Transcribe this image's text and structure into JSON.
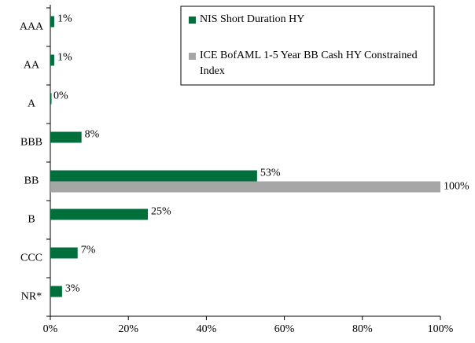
{
  "chart_data": {
    "type": "bar",
    "orientation": "horizontal",
    "categories": [
      "AAA",
      "AA",
      "A",
      "BBB",
      "BB",
      "B",
      "CCC",
      "NR*"
    ],
    "series": [
      {
        "name": "NIS Short Duration HY",
        "color": "#006f3c",
        "values": [
          1,
          1,
          0,
          8,
          53,
          25,
          7,
          3
        ],
        "value_labels": [
          "1%",
          "1%",
          "0%",
          "8%",
          "53%",
          "25%",
          "7%",
          "3%"
        ]
      },
      {
        "name": "ICE BofAML 1-5 Year BB Cash HY Constrained Index",
        "color": "#a6a6a6",
        "values": [
          null,
          null,
          null,
          null,
          100,
          null,
          null,
          null
        ],
        "value_labels": [
          null,
          null,
          null,
          null,
          "100%",
          null,
          null,
          null
        ]
      }
    ],
    "xlim": [
      0,
      100
    ],
    "xticks": [
      {
        "value": 0,
        "label": "0%"
      },
      {
        "value": 20,
        "label": "20%"
      },
      {
        "value": 40,
        "label": "40%"
      },
      {
        "value": 60,
        "label": "60%"
      },
      {
        "value": 80,
        "label": "80%"
      },
      {
        "value": 100,
        "label": "100%"
      }
    ],
    "grid": false,
    "legend": "upper right"
  }
}
